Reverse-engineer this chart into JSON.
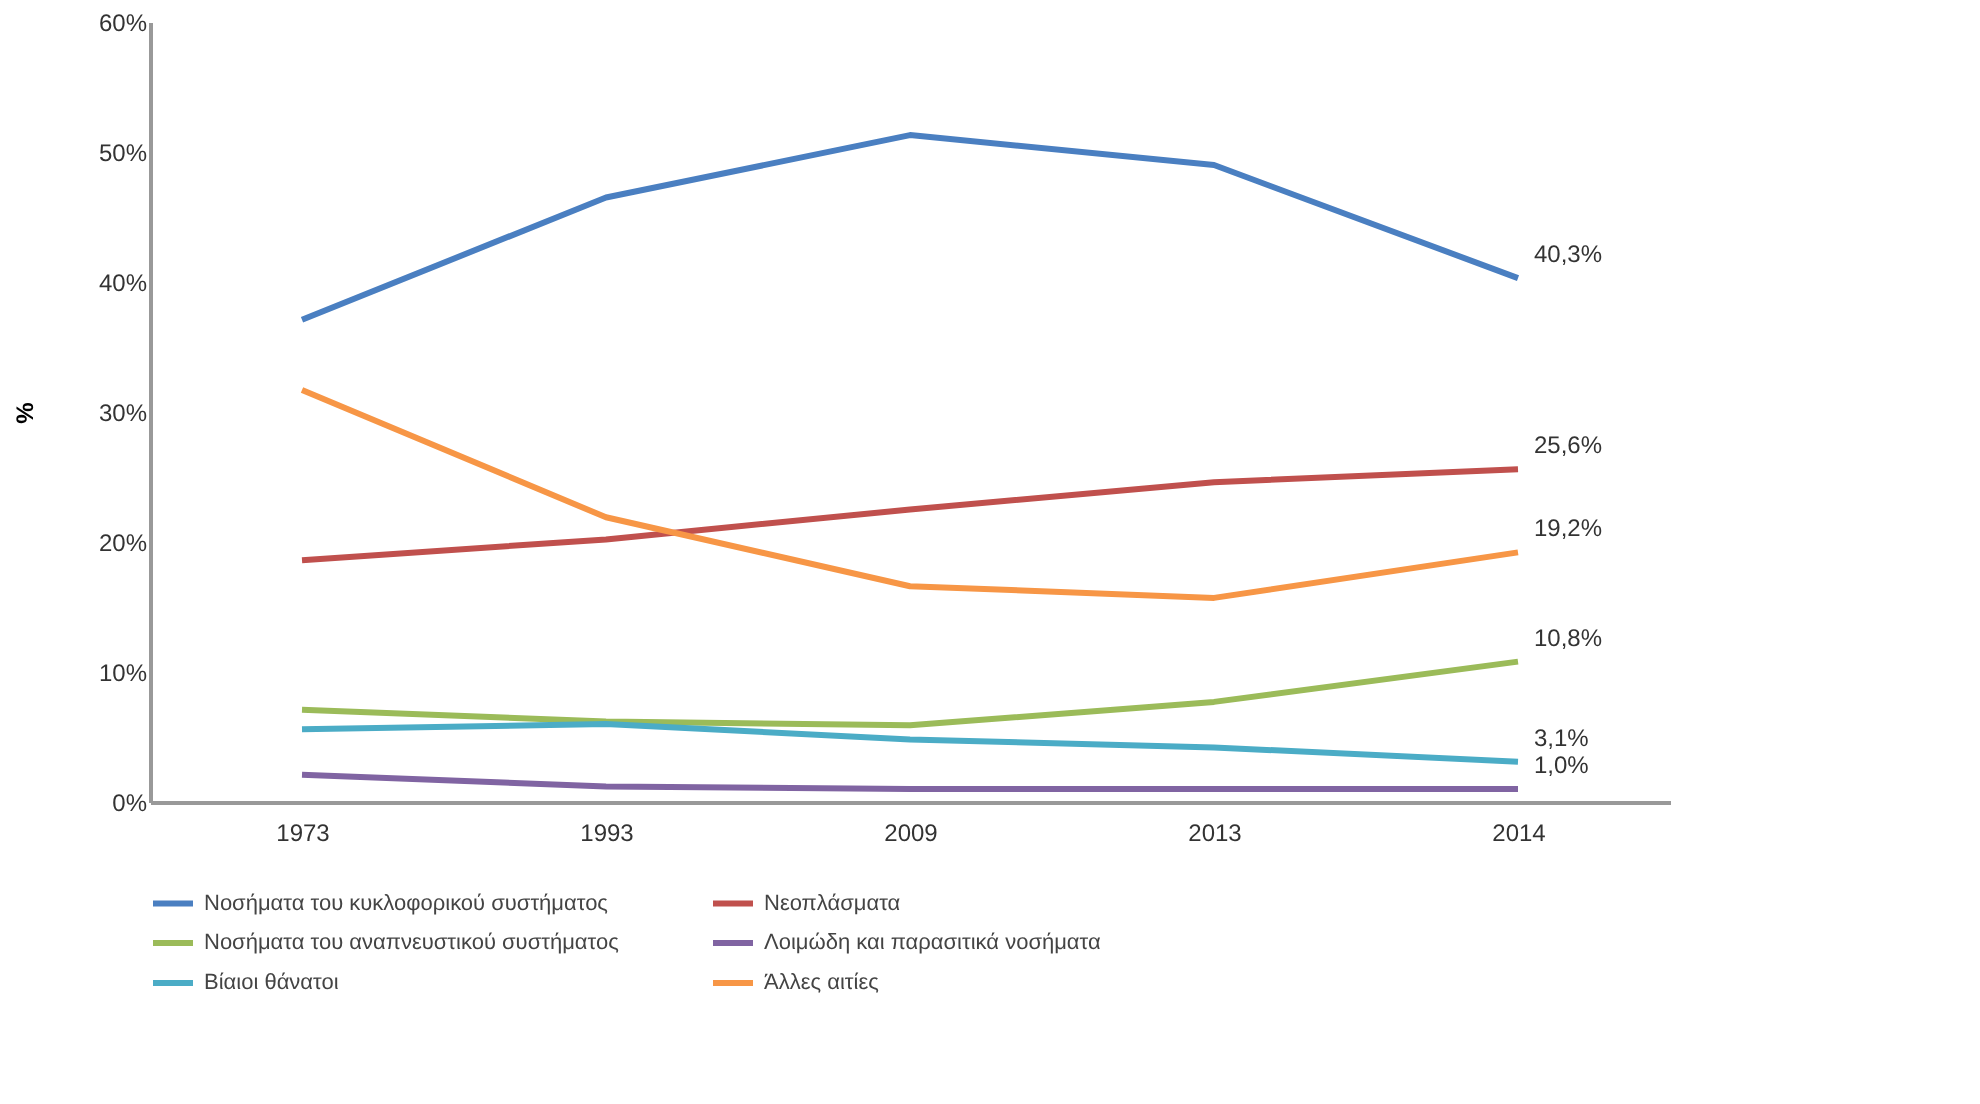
{
  "chart_data": {
    "type": "line",
    "ylabel": "%",
    "categories": [
      "1973",
      "1993",
      "2009",
      "2013",
      "2014"
    ],
    "series": [
      {
        "name": "Νοσήματα του κυκλοφορικού συστήματος",
        "color": "#4a7fc1",
        "values": [
          37.1,
          46.5,
          51.3,
          49.0,
          40.3
        ],
        "value_labels": [
          null,
          null,
          null,
          null,
          "40,3%"
        ]
      },
      {
        "name": "Νεοπλάσματα",
        "color": "#c0504d",
        "values": [
          18.6,
          20.2,
          22.5,
          24.6,
          25.6
        ],
        "value_labels": [
          null,
          null,
          null,
          null,
          "25,6%"
        ]
      },
      {
        "name": "Νοσήματα του αναπνευστικού συστήματος",
        "color": "#9bbb59",
        "values": [
          7.1,
          6.2,
          5.9,
          7.7,
          10.8
        ],
        "value_labels": [
          null,
          null,
          null,
          null,
          "10,8%"
        ]
      },
      {
        "name": "Λοιμώδη και παρασιτικά νοσήματα",
        "color": "#8064a2",
        "values": [
          2.1,
          1.2,
          1.0,
          1.0,
          1.0
        ],
        "value_labels": [
          null,
          null,
          null,
          null,
          "1,0%"
        ]
      },
      {
        "name": "Βίαιοι θάνατοι",
        "color": "#4bacc6",
        "values": [
          5.6,
          6.0,
          4.8,
          4.2,
          3.1
        ],
        "value_labels": [
          null,
          null,
          null,
          null,
          "3,1%"
        ]
      },
      {
        "name": "Άλλες αιτίες",
        "color": "#f79646",
        "values": [
          31.7,
          21.9,
          16.6,
          15.7,
          19.2
        ],
        "value_labels": [
          null,
          null,
          null,
          null,
          "19,2%"
        ]
      }
    ],
    "ylim": [
      0,
      60
    ],
    "yticks": [
      {
        "value": 0,
        "label": "0%"
      },
      {
        "value": 10,
        "label": "10%"
      },
      {
        "value": 20,
        "label": "20%"
      },
      {
        "value": 30,
        "label": "30%"
      },
      {
        "value": 40,
        "label": "40%"
      },
      {
        "value": 50,
        "label": "50%"
      },
      {
        "value": 60,
        "label": "60%"
      }
    ],
    "grid": false,
    "legend": "bottom",
    "marker": "none",
    "line_style": "solid"
  }
}
